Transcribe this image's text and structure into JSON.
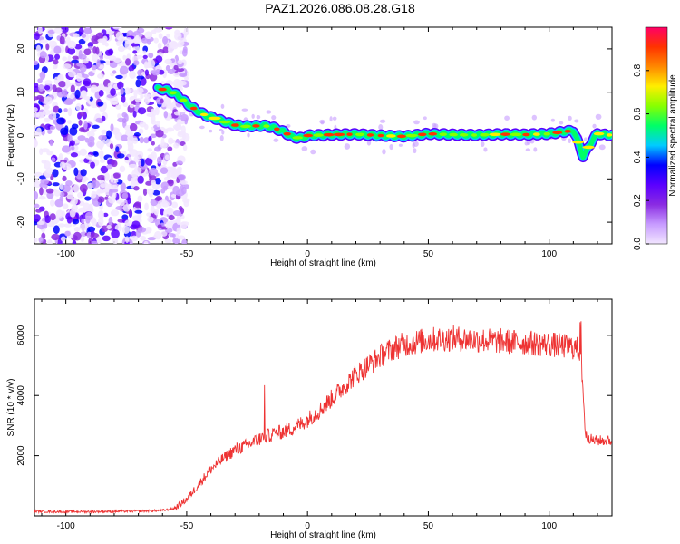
{
  "title": "PAZ1.2026.086.08.28.G18",
  "colors": {
    "snr_line": "#ee3333",
    "background": "#ffffff",
    "colormap": [
      "#f2e6ff",
      "#c79bff",
      "#8a2be2",
      "#5a00ff",
      "#0000ff",
      "#00ccff",
      "#00ff66",
      "#88ff00",
      "#ffee00",
      "#ff8800",
      "#ff3300",
      "#ff0066"
    ]
  },
  "chart_data": [
    {
      "type": "heatmap",
      "title": "PAZ1.2026.086.08.28.G18",
      "xlabel": "Height of straight line (km)",
      "ylabel": "Frequency (Hz)",
      "xlim": [
        -113,
        126
      ],
      "ylim": [
        -25,
        25
      ],
      "xticks": [
        -100,
        -50,
        0,
        50,
        100
      ],
      "yticks": [
        -20,
        -10,
        0,
        10,
        20
      ],
      "colorbar": {
        "label": "Normalized spectral amplitude",
        "range": [
          0,
          1
        ],
        "ticks": [
          0.0,
          0.2,
          0.4,
          0.6,
          0.8
        ]
      },
      "ridge": {
        "x": [
          -62,
          -58,
          -54,
          -50,
          -46,
          -42,
          -38,
          -34,
          -30,
          -26,
          -22,
          -18,
          -14,
          -10,
          -6,
          -2,
          0,
          10,
          20,
          30,
          40,
          50,
          60,
          70,
          80,
          90,
          100,
          105,
          108,
          110,
          112,
          114,
          116,
          118,
          120,
          122,
          126
        ],
        "y": [
          10.8,
          10.5,
          9.4,
          7.5,
          5.8,
          4.6,
          3.9,
          3.1,
          2.4,
          2.1,
          2.2,
          2.3,
          1.8,
          0.9,
          -0.4,
          -0.6,
          0.0,
          0.2,
          0.3,
          0.0,
          -0.2,
          0.4,
          0.2,
          0.1,
          0.3,
          0.2,
          0.4,
          0.8,
          1.0,
          1.2,
          -1.5,
          -4.8,
          -3.0,
          -1.0,
          0.5,
          0.2,
          0.1
        ]
      },
      "noise_region": {
        "x_range": [
          -113,
          -55
        ],
        "description_visible": false
      }
    },
    {
      "type": "line",
      "xlabel": "Height of straight line (km)",
      "ylabel": "SNR (10 * v/v)",
      "xlim": [
        -113,
        126
      ],
      "ylim": [
        0,
        7200
      ],
      "xticks": [
        -100,
        -50,
        0,
        50,
        100
      ],
      "yticks": [
        2000,
        4000,
        6000
      ],
      "series": [
        {
          "x": [
            -113,
            -100,
            -90,
            -80,
            -70,
            -60,
            -55,
            -50,
            -45,
            -40,
            -35,
            -30,
            -25,
            -20,
            -15,
            -10,
            -5,
            0,
            5,
            10,
            15,
            20,
            25,
            30,
            35,
            40,
            50,
            60,
            70,
            80,
            90,
            100,
            105,
            110,
            113,
            114,
            115,
            118,
            122,
            126
          ],
          "y": [
            150,
            140,
            140,
            150,
            160,
            180,
            250,
            550,
            1050,
            1550,
            1900,
            2200,
            2350,
            2550,
            2700,
            2800,
            2950,
            3200,
            3500,
            3900,
            4300,
            4700,
            5000,
            5300,
            5550,
            5700,
            5850,
            5900,
            5850,
            5800,
            5750,
            5700,
            5650,
            5600,
            5500,
            4200,
            2700,
            2500,
            2500,
            2500
          ]
        }
      ]
    }
  ]
}
